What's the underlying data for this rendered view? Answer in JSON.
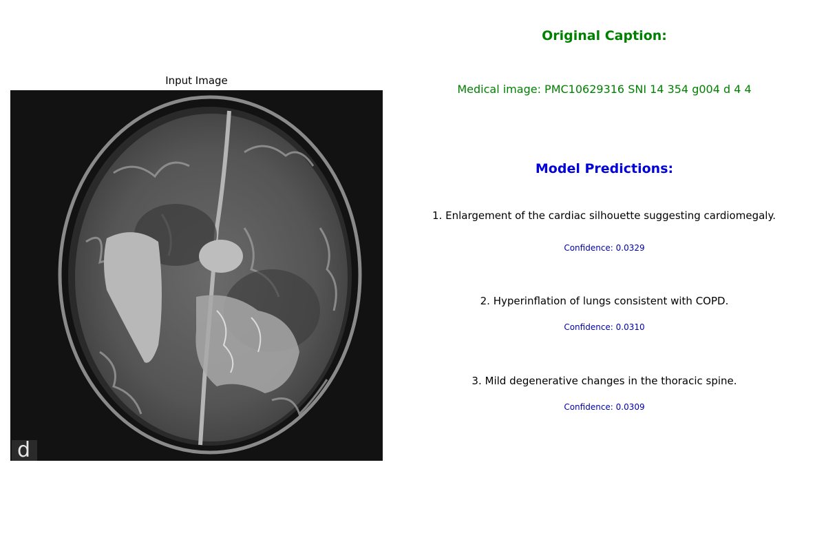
{
  "input_panel": {
    "title": "Input Image",
    "corner_label": "d"
  },
  "caption": {
    "heading": "Original Caption:",
    "text": "Medical image: PMC10629316 SNI 14 354 g004 d 4 4",
    "color": "#008000"
  },
  "predictions": {
    "heading": "Model Predictions:",
    "heading_color": "#0000dd",
    "items": [
      {
        "text": "1. Enlargement of the cardiac silhouette suggesting cardiomegaly.",
        "confidence": "Confidence: 0.0329"
      },
      {
        "text": "2. Hyperinflation of lungs consistent with COPD.",
        "confidence": "Confidence: 0.0310"
      },
      {
        "text": "3. Mild degenerative changes in the thoracic spine.",
        "confidence": "Confidence: 0.0309"
      }
    ]
  }
}
